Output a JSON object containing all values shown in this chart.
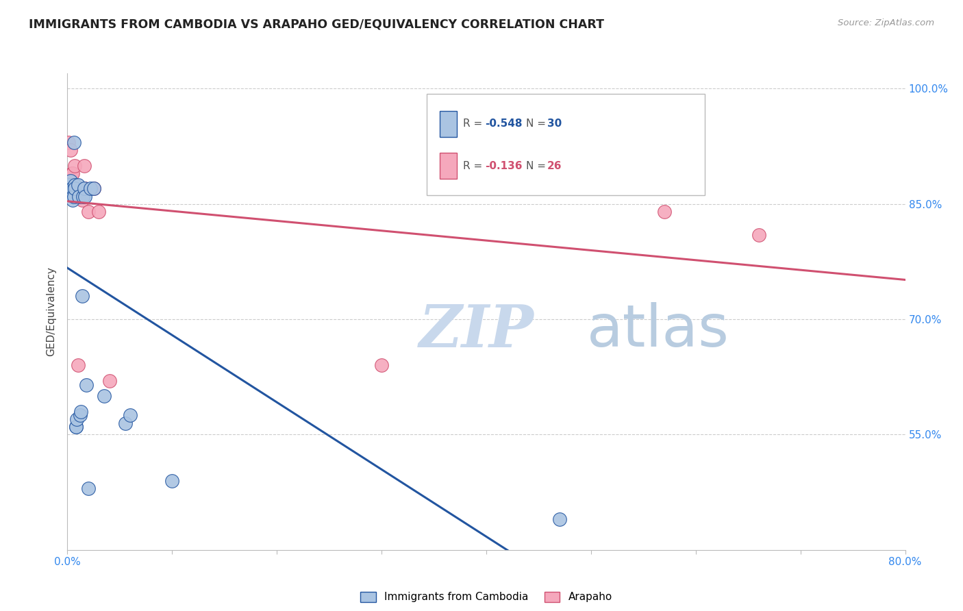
{
  "title": "IMMIGRANTS FROM CAMBODIA VS ARAPAHO GED/EQUIVALENCY CORRELATION CHART",
  "source": "Source: ZipAtlas.com",
  "ylabel": "GED/Equivalency",
  "xlim": [
    0.0,
    0.8
  ],
  "ylim": [
    0.4,
    1.02
  ],
  "ytick_values": [
    0.55,
    0.7,
    0.85,
    1.0
  ],
  "ytick_labels": [
    "55.0%",
    "70.0%",
    "85.0%",
    "100.0%"
  ],
  "legend_label1": "Immigrants from Cambodia",
  "legend_label2": "Arapaho",
  "R1": -0.548,
  "N1": 30,
  "R2": -0.136,
  "N2": 26,
  "color_blue": "#aac4e2",
  "color_pink": "#f5a8bc",
  "line_color_blue": "#2255a0",
  "line_color_pink": "#d05070",
  "watermark_zip": "ZIP",
  "watermark_atlas": "atlas",
  "watermark_color_zip": "#c8d8ec",
  "watermark_color_atlas": "#b8cce0",
  "blue_x": [
    0.001,
    0.002,
    0.003,
    0.004,
    0.005,
    0.005,
    0.006,
    0.006,
    0.007,
    0.007,
    0.008,
    0.008,
    0.009,
    0.01,
    0.011,
    0.012,
    0.013,
    0.014,
    0.015,
    0.016,
    0.017,
    0.018,
    0.02,
    0.022,
    0.025,
    0.035,
    0.055,
    0.06,
    0.1,
    0.47
  ],
  "blue_y": [
    0.865,
    0.875,
    0.88,
    0.87,
    0.86,
    0.855,
    0.93,
    0.86,
    0.875,
    0.87,
    0.56,
    0.56,
    0.57,
    0.875,
    0.86,
    0.575,
    0.58,
    0.73,
    0.86,
    0.87,
    0.86,
    0.615,
    0.48,
    0.87,
    0.87,
    0.6,
    0.565,
    0.575,
    0.49,
    0.44
  ],
  "pink_x": [
    0.001,
    0.002,
    0.003,
    0.003,
    0.004,
    0.005,
    0.005,
    0.006,
    0.006,
    0.007,
    0.007,
    0.008,
    0.009,
    0.01,
    0.011,
    0.012,
    0.014,
    0.016,
    0.017,
    0.02,
    0.025,
    0.03,
    0.04,
    0.3,
    0.57,
    0.66
  ],
  "pink_y": [
    0.93,
    0.88,
    0.92,
    0.88,
    0.89,
    0.89,
    0.87,
    0.875,
    0.86,
    0.875,
    0.9,
    0.87,
    0.86,
    0.64,
    0.87,
    0.87,
    0.855,
    0.9,
    0.87,
    0.84,
    0.87,
    0.84,
    0.62,
    0.64,
    0.84,
    0.81
  ]
}
